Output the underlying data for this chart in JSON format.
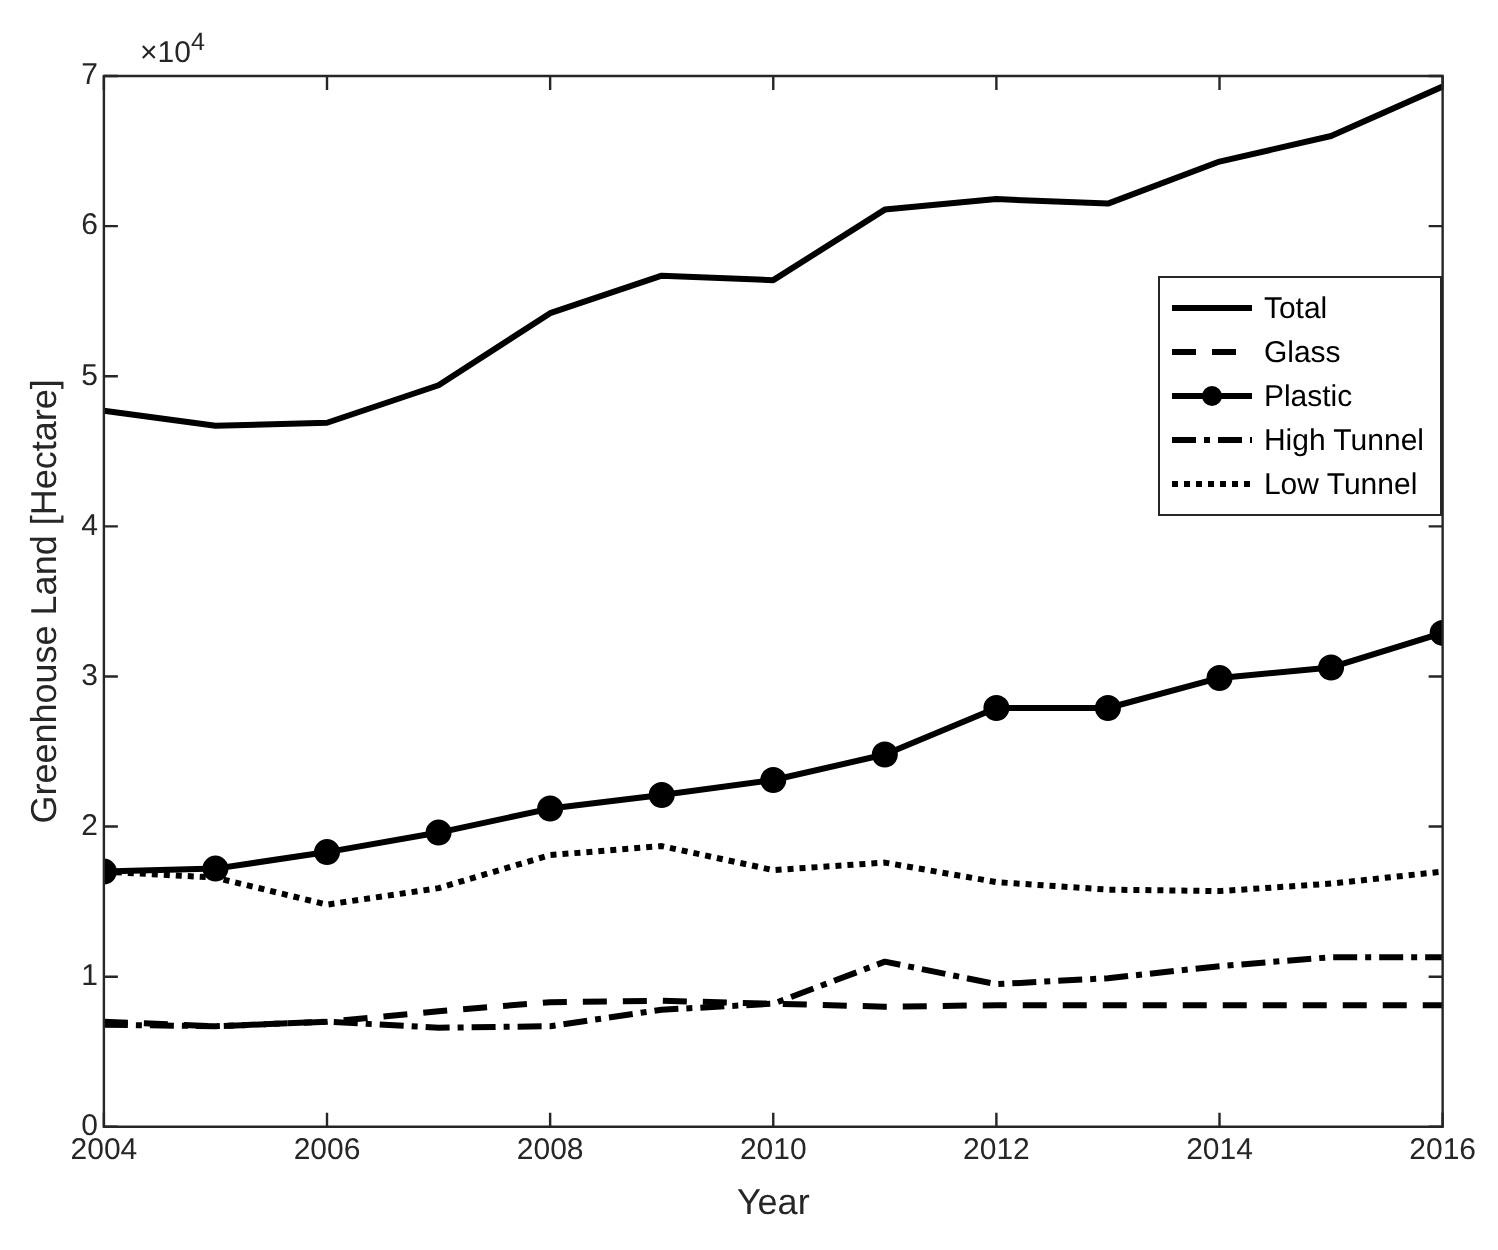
{
  "chart_data": {
    "type": "line",
    "xlabel": "Year",
    "ylabel": "Greenhouse Land [Hectare]",
    "annotations": [
      "×10$^{4}$"
    ],
    "x": [
      2004,
      2005,
      2006,
      2007,
      2008,
      2009,
      2010,
      2011,
      2012,
      2013,
      2014,
      2015,
      2016
    ],
    "series": [
      {
        "name": "Total",
        "color": "#000000",
        "line_style": "solid",
        "marker": "none",
        "values": [
          4.77,
          4.67,
          4.69,
          4.94,
          5.42,
          5.67,
          5.64,
          6.11,
          6.18,
          6.15,
          6.43,
          6.6,
          6.93
        ]
      },
      {
        "name": "Glass",
        "color": "#000000",
        "line_style": "dashed",
        "marker": "none",
        "values": [
          0.7,
          0.67,
          0.7,
          0.77,
          0.83,
          0.84,
          0.82,
          0.8,
          0.81,
          0.81,
          0.81,
          0.81,
          0.81
        ]
      },
      {
        "name": "Plastic",
        "color": "#000000",
        "line_style": "solid",
        "marker": "circle",
        "values": [
          1.7,
          1.72,
          1.83,
          1.96,
          2.12,
          2.21,
          2.31,
          2.48,
          2.79,
          2.79,
          2.99,
          3.06,
          3.29
        ]
      },
      {
        "name": "High Tunnel",
        "color": "#000000",
        "line_style": "dashdot",
        "marker": "none",
        "values": [
          0.68,
          0.67,
          0.7,
          0.66,
          0.67,
          0.78,
          0.82,
          1.1,
          0.95,
          0.99,
          1.07,
          1.13,
          1.13
        ]
      },
      {
        "name": "Low Tunnel",
        "color": "#000000",
        "line_style": "dotted",
        "marker": "none",
        "values": [
          1.7,
          1.66,
          1.48,
          1.59,
          1.81,
          1.87,
          1.71,
          1.76,
          1.63,
          1.58,
          1.57,
          1.62,
          1.7
        ]
      }
    ],
    "xlim": [
      2004,
      2016
    ],
    "xticks": [
      2004,
      2006,
      2008,
      2010,
      2012,
      2014,
      2016
    ],
    "ylim": [
      0,
      7
    ],
    "yticks": [
      0,
      1,
      2,
      3,
      4,
      5,
      6,
      7
    ],
    "grid": false,
    "legend": "top right"
  }
}
